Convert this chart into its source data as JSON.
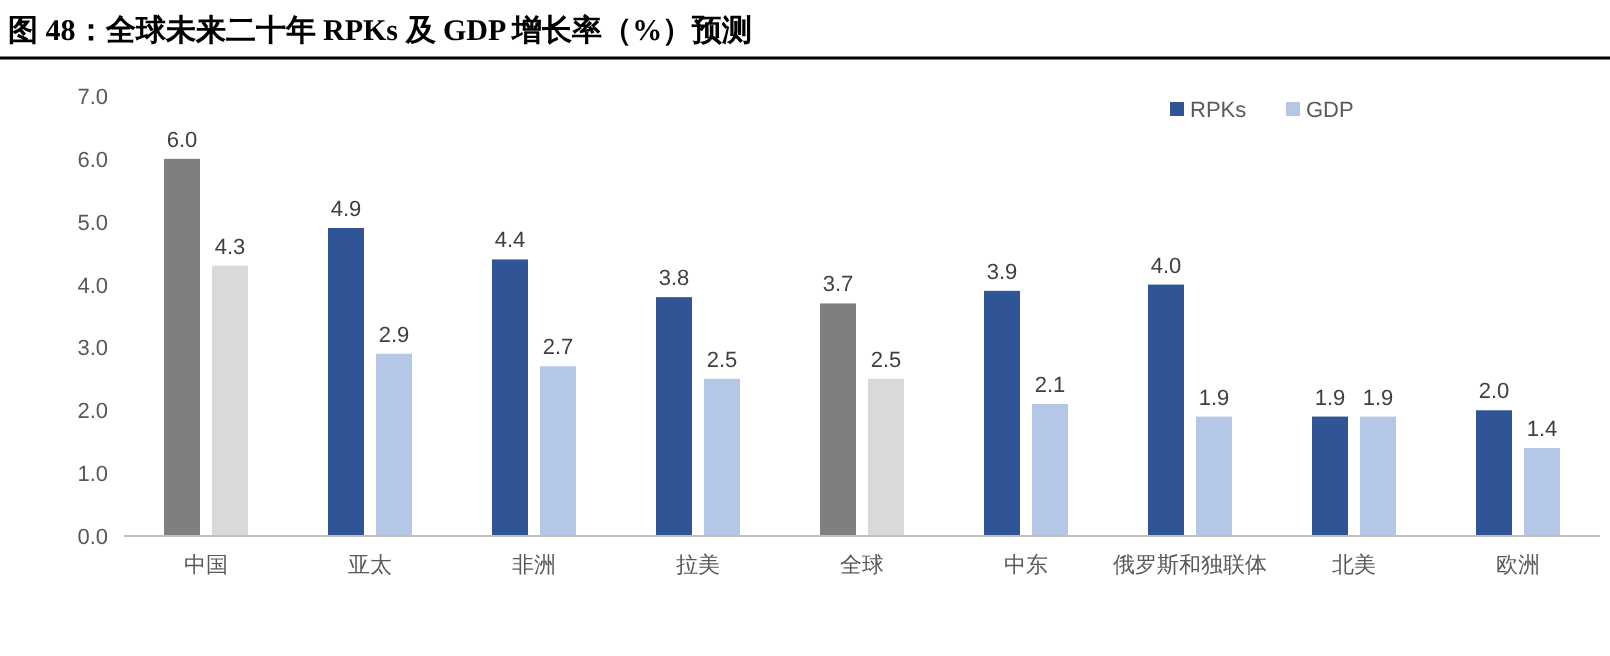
{
  "chart_data": {
    "type": "bar",
    "title": "图 48：全球未来二十年 RPKs 及 GDP 增长率（%）预测",
    "categories": [
      "中国",
      "亚太",
      "非洲",
      "拉美",
      "全球",
      "中东",
      "俄罗斯和独联体",
      "北美",
      "欧洲"
    ],
    "series": [
      {
        "name": "RPKs",
        "color": "#2f5597",
        "colors": [
          "#7f7f7f",
          "#2f5597",
          "#2f5597",
          "#2f5597",
          "#7f7f7f",
          "#2f5597",
          "#2f5597",
          "#2f5597",
          "#2f5597"
        ],
        "values": [
          6.0,
          4.9,
          4.4,
          3.8,
          3.7,
          3.9,
          4.0,
          1.9,
          2.0
        ],
        "value_labels": [
          "6.0",
          "4.9",
          "4.4",
          "3.8",
          "3.7",
          "3.9",
          "4.0",
          "1.9",
          "2.0"
        ]
      },
      {
        "name": "GDP",
        "color": "#b4c7e7",
        "colors": [
          "#d9d9d9",
          "#b4c7e7",
          "#b4c7e7",
          "#b4c7e7",
          "#d9d9d9",
          "#b4c7e7",
          "#b4c7e7",
          "#b4c7e7",
          "#b4c7e7"
        ],
        "values": [
          4.3,
          2.9,
          2.7,
          2.5,
          2.5,
          2.1,
          1.9,
          1.9,
          1.4
        ],
        "value_labels": [
          "4.3",
          "2.9",
          "2.7",
          "2.5",
          "2.5",
          "2.1",
          "1.9",
          "1.9",
          "1.4"
        ]
      }
    ],
    "ylim": [
      0,
      7
    ],
    "yticks": [
      {
        "value": 0,
        "label": "0.0"
      },
      {
        "value": 1,
        "label": "1.0"
      },
      {
        "value": 2,
        "label": "2.0"
      },
      {
        "value": 3,
        "label": "3.0"
      },
      {
        "value": 4,
        "label": "4.0"
      },
      {
        "value": 5,
        "label": "5.0"
      },
      {
        "value": 6,
        "label": "6.0"
      },
      {
        "value": 7,
        "label": "7.0"
      }
    ],
    "grid": false,
    "legend": "top right"
  }
}
